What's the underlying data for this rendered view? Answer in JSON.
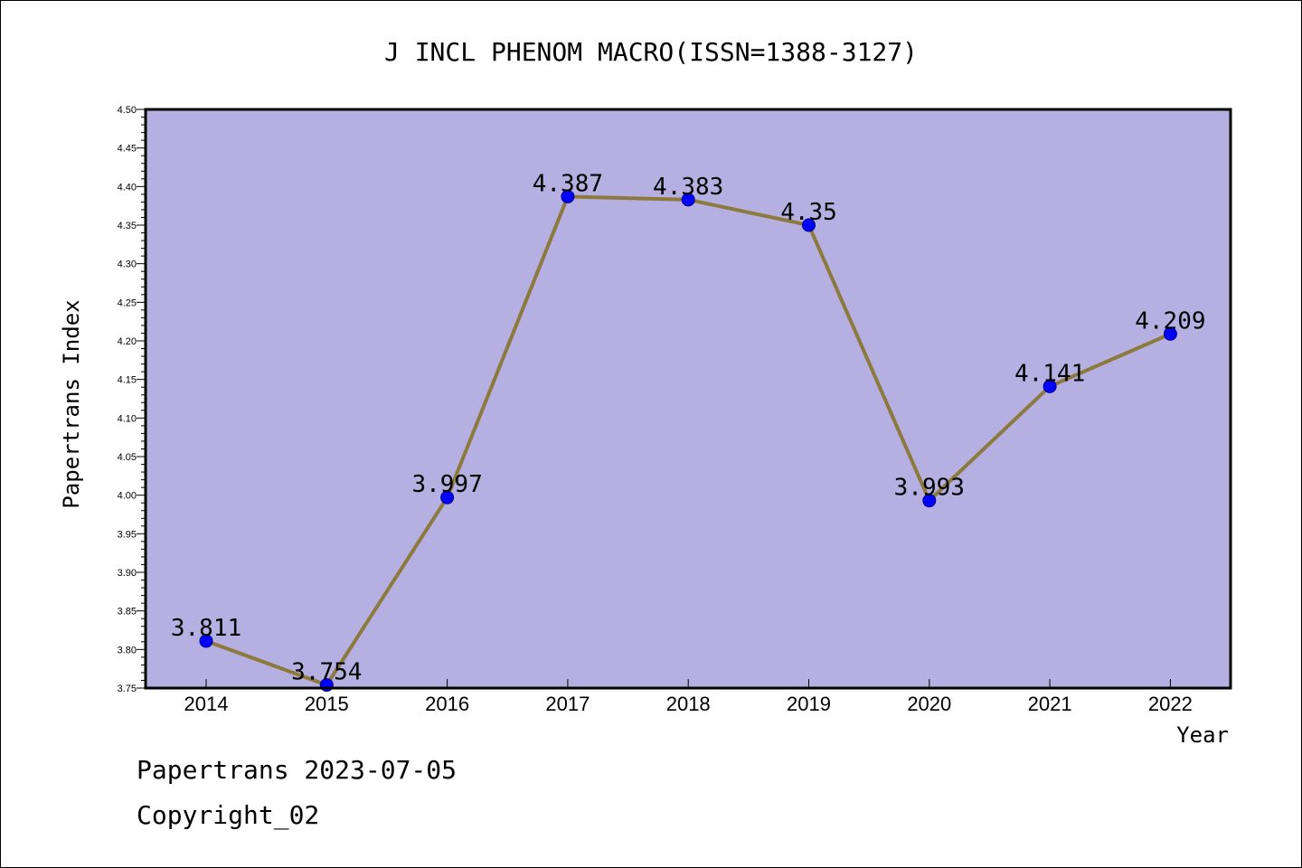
{
  "chart_data": {
    "type": "line",
    "title": "J INCL PHENOM MACRO(ISSN=1388-3127)",
    "xlabel": "Year",
    "ylabel": "Papertrans Index",
    "categories": [
      "2014",
      "2015",
      "2016",
      "2017",
      "2018",
      "2019",
      "2020",
      "2021",
      "2022"
    ],
    "values": [
      3.811,
      3.754,
      3.997,
      4.387,
      4.383,
      4.35,
      3.993,
      4.141,
      4.209
    ],
    "value_labels": [
      "3.811",
      "3.754",
      "3.997",
      "4.387",
      "4.383",
      "4.35",
      "3.993",
      "4.141",
      "4.209"
    ],
    "ylim": [
      3.75,
      4.5
    ],
    "yticks": [
      "3.75",
      "3.80",
      "3.85",
      "3.90",
      "3.95",
      "4.00",
      "4.05",
      "4.10",
      "4.15",
      "4.20",
      "4.25",
      "4.30",
      "4.35",
      "4.40",
      "4.45",
      "4.50"
    ],
    "grid": false,
    "colors": {
      "plot_background": "#b5afe2",
      "line": "#8c7a3c",
      "marker": "#0000ff"
    }
  },
  "footer": {
    "source": "Papertrans 2023-07-05",
    "copyright": "Copyright_02"
  }
}
